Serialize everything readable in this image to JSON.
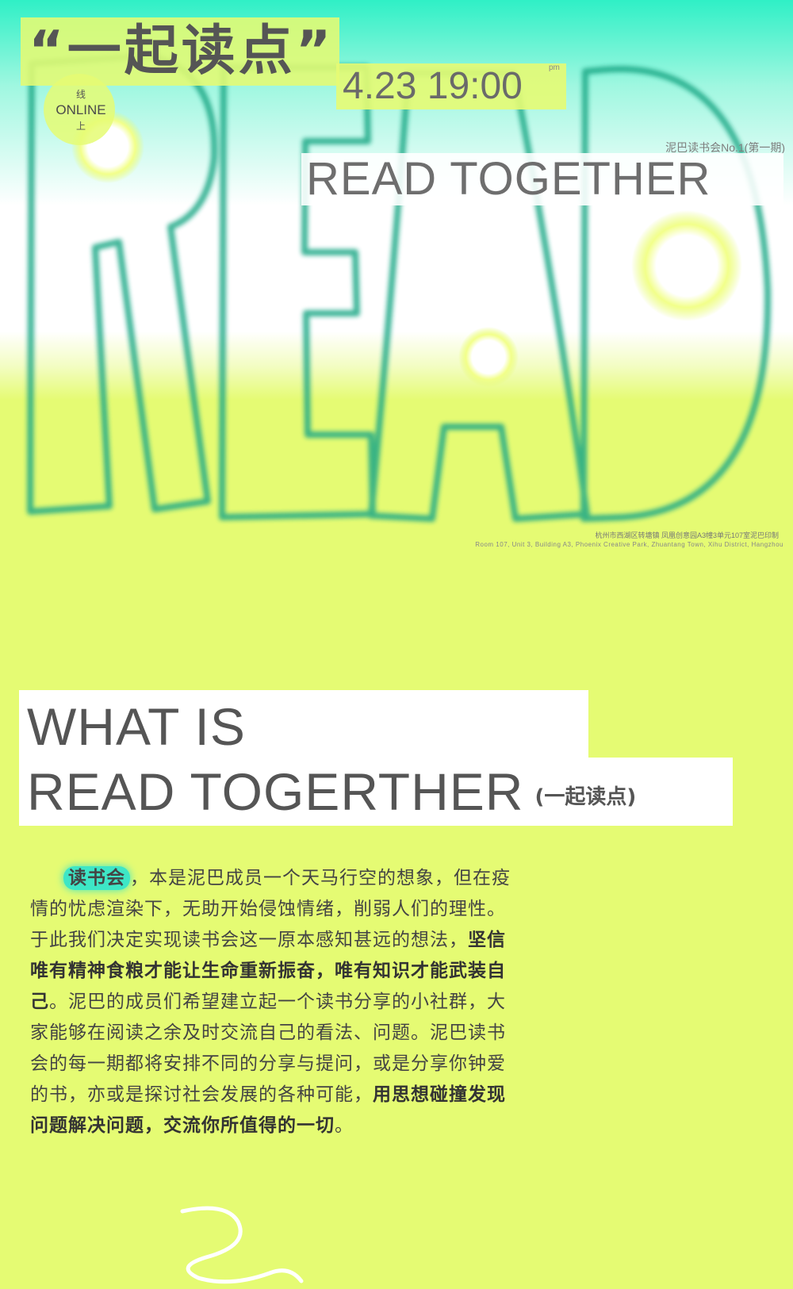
{
  "poster": {
    "title_cn": "“一起读点”",
    "datetime": "4.23 19:00",
    "time_suffix": "pm",
    "online_top": "线",
    "online_mid": "ONLINE",
    "online_bottom": "上",
    "episode": "泥巴读书会No.1(第一期)",
    "read_together": "READ TOGETHER",
    "art_word": "READ",
    "address_cn": "杭州市西湖区转塘镇 凤凰创意园A3幢3单元107室泥巴印制",
    "address_en": "Room 107, Unit 3, Building A3, Phoenix Creative Park, Zhuantang Town, Xihu District, Hangzhou",
    "colors": {
      "lime": "#e5fb73",
      "mint": "#2ff0c6",
      "outline": "#1aa886",
      "text": "#555555"
    }
  },
  "section": {
    "heading_line1": "WHAT IS",
    "heading_line2": "READ TOGERTHER",
    "heading_paren": "(一起读点)"
  },
  "body": {
    "highlight": "读书会",
    "p1": "，本是泥巴成员一个天马行空的想象，但在疫情的忧虑渲染下，无助开始侵蚀情绪，削弱人们的理性。于此我们决定实现读书会这一原本感知甚远的想法，",
    "b1": "坚信唯有精神食粮才能让生命重新振奋，唯有知识才能武装自己",
    "p2": "。泥巴的成员们希望建立起一个读书分享的小社群，大家能够在阅读之余及时交流自己的看法、问题。泥巴读书会的每一期都将安排不同的分享与提问，或是分享你钟爱的书，亦或是探讨社会发展的各种可能，",
    "b2": "用思想碰撞发现问题解决问题，交流你所值得的一切",
    "p3": "。"
  }
}
